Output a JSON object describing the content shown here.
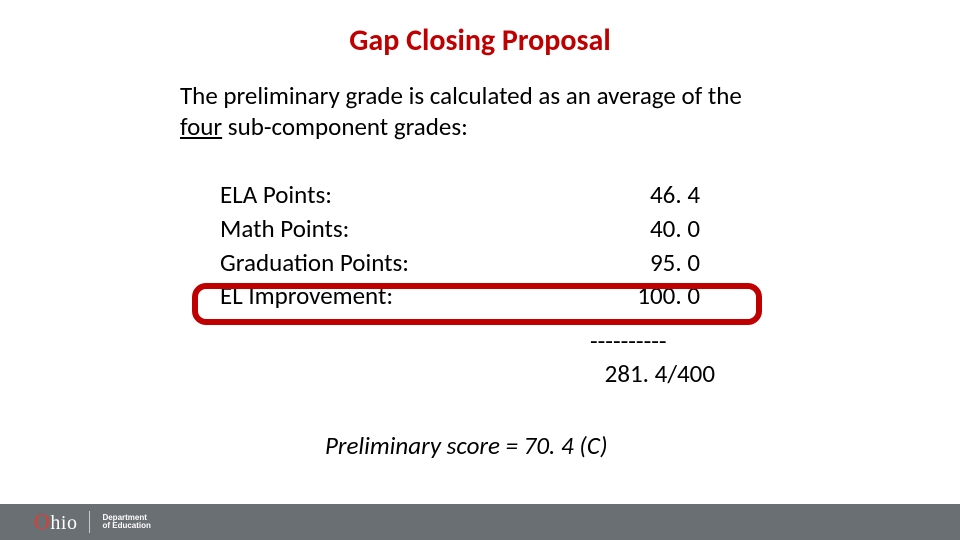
{
  "title": "Gap Closing Proposal",
  "intro_part1": "The preliminary grade is calculated as an average of the ",
  "intro_underline": "four",
  "intro_part2": " sub-component grades:",
  "rows": [
    {
      "label": "ELA Points:",
      "value": "46. 4"
    },
    {
      "label": "Math Points:",
      "value": "40. 0"
    },
    {
      "label": "Graduation Points:",
      "value": "95. 0"
    },
    {
      "label": "EL Improvement:",
      "value": "100. 0"
    }
  ],
  "dashes": "----------",
  "total": "281. 4/400",
  "prelim_score": "Preliminary score = 70. 4 (C)",
  "footer": {
    "ohio_o": "O",
    "ohio_rest": "hio",
    "dept_line1": "Department",
    "dept_line2": "of Education"
  },
  "colors": {
    "title": "#c00000",
    "highlight_border": "#c00000",
    "footer_bg": "#6a6f73",
    "ohio_red": "#e03c31"
  }
}
